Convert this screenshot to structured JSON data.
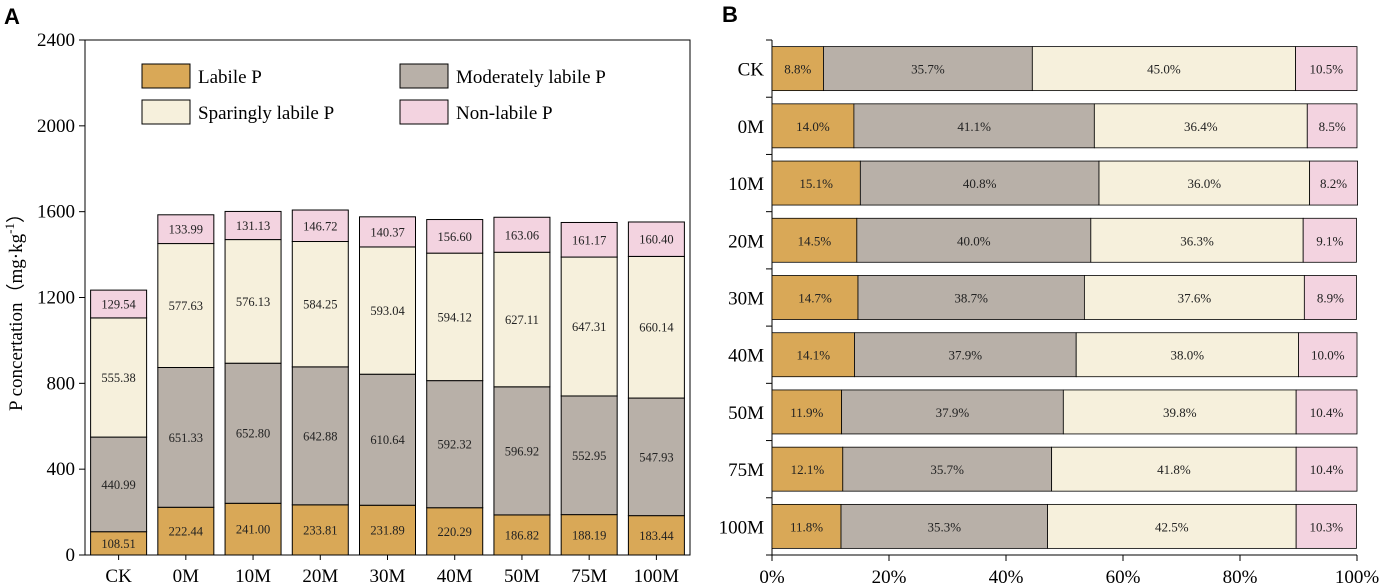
{
  "chart_data": [
    {
      "panel": "A",
      "type": "bar",
      "stacked": true,
      "categories": [
        "CK",
        "0M",
        "10M",
        "20M",
        "30M",
        "40M",
        "50M",
        "75M",
        "100M"
      ],
      "ylabel": "P concertation（mg·kg-1）",
      "ylabel_parts": {
        "main": "P concertation（mg·kg",
        "sup": "-1",
        "end": "）"
      },
      "ylim": [
        0,
        2400
      ],
      "yticks": [
        0,
        400,
        800,
        1200,
        1600,
        2000,
        2400
      ],
      "series": [
        {
          "name": "Labile P",
          "color": "#D9A857",
          "values": [
            108.51,
            222.44,
            241.0,
            233.81,
            231.89,
            220.29,
            186.82,
            188.19,
            183.44
          ],
          "labels": [
            "108.51",
            "222.44",
            "241.00",
            "233.81",
            "231.89",
            "220.29",
            "186.82",
            "188.19",
            "183.44"
          ]
        },
        {
          "name": "Moderately labile P",
          "color": "#B8B0A8",
          "values": [
            440.99,
            651.33,
            652.8,
            642.88,
            610.64,
            592.32,
            596.92,
            552.95,
            547.93
          ],
          "labels": [
            "440.99",
            "651.33",
            "652.80",
            "642.88",
            "610.64",
            "592.32",
            "596.92",
            "552.95",
            "547.93"
          ]
        },
        {
          "name": "Sparingly labile P",
          "color": "#F6F0DC",
          "values": [
            555.38,
            577.63,
            576.13,
            584.25,
            593.04,
            594.12,
            627.11,
            647.31,
            660.14
          ],
          "labels": [
            "555.38",
            "577.63",
            "576.13",
            "584.25",
            "593.04",
            "594.12",
            "627.11",
            "647.31",
            "660.14"
          ]
        },
        {
          "name": "Non-labile P",
          "color": "#F3D3E0",
          "values": [
            129.54,
            133.99,
            131.13,
            146.72,
            140.37,
            156.6,
            163.06,
            161.17,
            160.4
          ],
          "labels": [
            "129.54",
            "133.99",
            "131.13",
            "146.72",
            "140.37",
            "156.60",
            "163.06",
            "161.17",
            "160.40"
          ]
        }
      ],
      "legend": {
        "placement": "top",
        "columns": 2
      }
    },
    {
      "panel": "B",
      "type": "bar",
      "orientation": "horizontal",
      "stacked": true,
      "percent": true,
      "categories": [
        "CK",
        "0M",
        "10M",
        "20M",
        "30M",
        "40M",
        "50M",
        "75M",
        "100M"
      ],
      "xlim": [
        0,
        100
      ],
      "xticks": [
        0,
        20,
        40,
        60,
        80,
        100
      ],
      "xtick_labels": [
        "0%",
        "20%",
        "40%",
        "60%",
        "80%",
        "100%"
      ],
      "series": [
        {
          "name": "Labile P",
          "color": "#D9A857",
          "values": [
            8.8,
            14.0,
            15.1,
            14.5,
            14.7,
            14.1,
            11.9,
            12.1,
            11.8
          ],
          "labels": [
            "8.8%",
            "14.0%",
            "15.1%",
            "14.5%",
            "14.7%",
            "14.1%",
            "11.9%",
            "12.1%",
            "11.8%"
          ]
        },
        {
          "name": "Moderately labile P",
          "color": "#B8B0A8",
          "values": [
            35.7,
            41.1,
            40.8,
            40.0,
            38.7,
            37.9,
            37.9,
            35.7,
            35.3
          ],
          "labels": [
            "35.7%",
            "41.1%",
            "40.8%",
            "40.0%",
            "38.7%",
            "37.9%",
            "37.9%",
            "35.7%",
            "35.3%"
          ]
        },
        {
          "name": "Sparingly labile P",
          "color": "#F6F0DC",
          "values": [
            45.0,
            36.4,
            36.0,
            36.3,
            37.6,
            38.0,
            39.8,
            41.8,
            42.5
          ],
          "labels": [
            "45.0%",
            "36.4%",
            "36.0%",
            "36.3%",
            "37.6%",
            "38.0%",
            "39.8%",
            "41.8%",
            "42.5%"
          ]
        },
        {
          "name": "Non-labile P",
          "color": "#F3D3E0",
          "values": [
            10.5,
            8.5,
            8.2,
            9.1,
            8.9,
            10.0,
            10.4,
            10.4,
            10.3
          ],
          "labels": [
            "10.5%",
            "8.5%",
            "8.2%",
            "9.1%",
            "8.9%",
            "10.0%",
            "10.4%",
            "10.4%",
            "10.3%"
          ]
        }
      ]
    }
  ]
}
